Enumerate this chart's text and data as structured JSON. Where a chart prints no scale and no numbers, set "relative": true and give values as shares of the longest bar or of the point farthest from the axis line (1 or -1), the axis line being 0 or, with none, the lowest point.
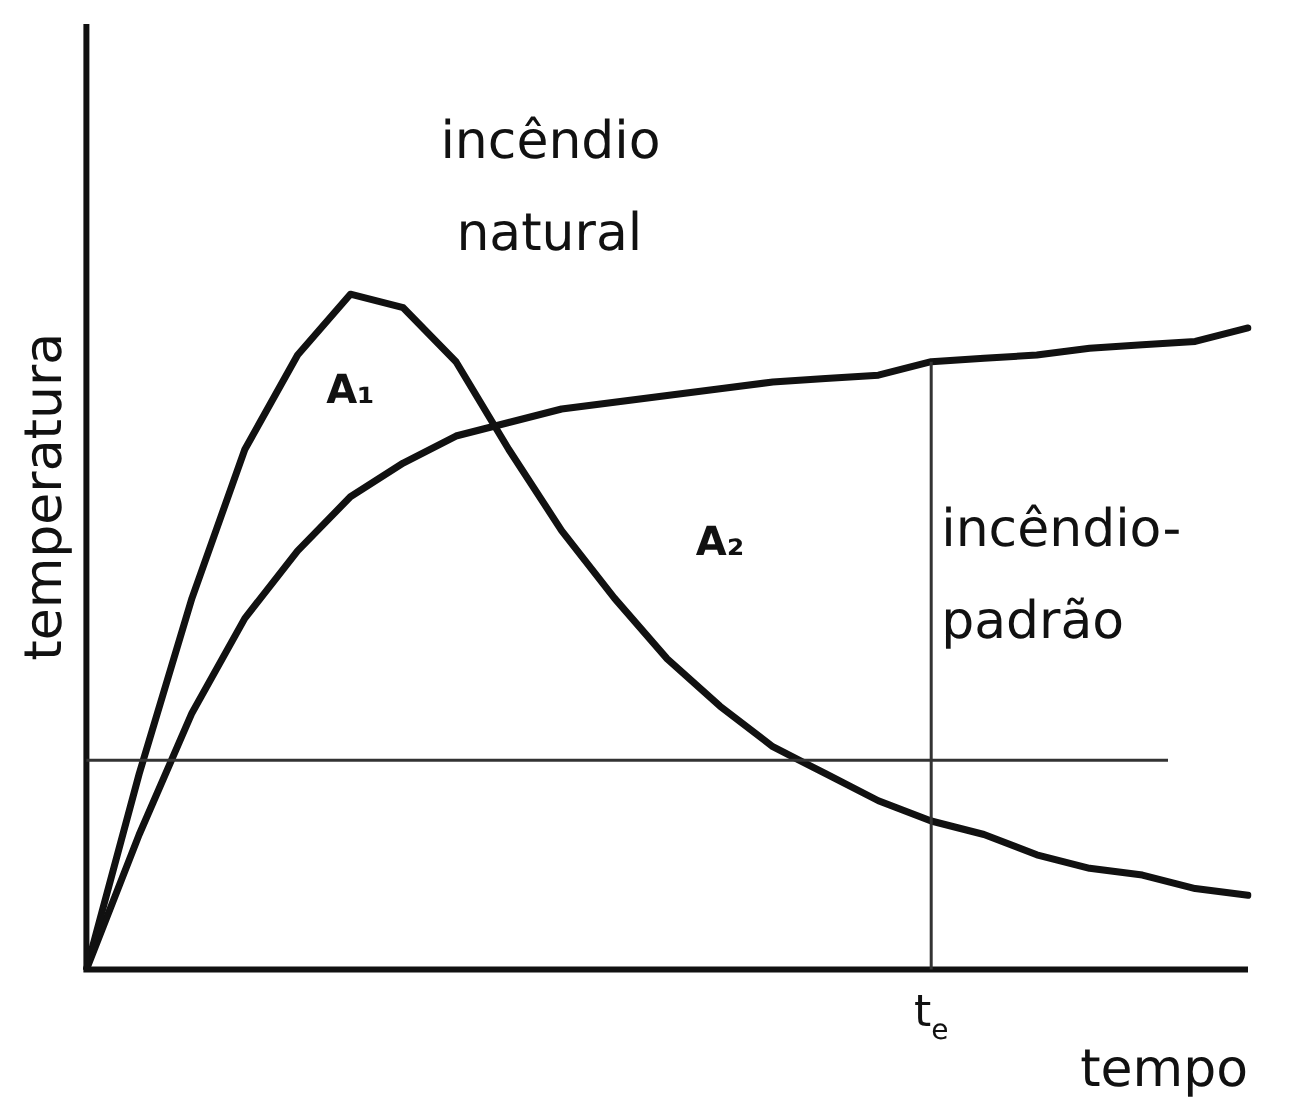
{
  "chart_data": {
    "type": "line",
    "relative": true,
    "xlabel": "tempo",
    "ylabel": "temperatura",
    "categories": [
      null,
      null,
      null,
      null,
      null,
      null,
      null,
      null,
      null,
      null,
      null,
      null,
      null,
      null,
      null,
      null,
      null,
      null,
      null,
      null,
      null,
      null,
      null
    ],
    "series": [
      {
        "name": "incêndio natural",
        "color": "#111111",
        "values": [
          0,
          0.29,
          0.55,
          0.77,
          0.91,
          1,
          0.98,
          0.9,
          0.77,
          0.65,
          0.55,
          0.46,
          0.39,
          0.33,
          0.29,
          0.25,
          0.22,
          0.2,
          0.17,
          0.15,
          0.14,
          0.12,
          0.11
        ]
      },
      {
        "name": "incêndio-padrão",
        "color": "#111111",
        "values": [
          0,
          0.2,
          0.38,
          0.52,
          0.62,
          0.7,
          0.75,
          0.79,
          0.81,
          0.83,
          0.84,
          0.85,
          0.86,
          0.87,
          0.875,
          0.88,
          0.9,
          0.905,
          0.91,
          0.92,
          0.925,
          0.93,
          0.95
        ]
      }
    ],
    "ref_lines": [
      {
        "axis": "y",
        "value": 0.31
      }
    ],
    "annotations": [
      "A₁",
      "A₂",
      "t$_{e}$"
    ],
    "legend": false,
    "grid": false,
    "marker": "none",
    "line_style": "solid"
  }
}
